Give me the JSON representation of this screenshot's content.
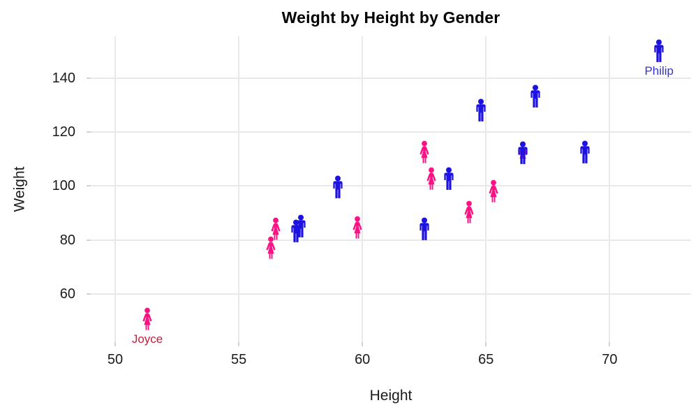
{
  "chart_data": {
    "type": "scatter",
    "title": "Weight by Height by Gender",
    "xlabel": "Height",
    "ylabel": "Weight",
    "x_ticks": [
      50,
      55,
      60,
      65,
      70
    ],
    "y_ticks": [
      60,
      80,
      100,
      120,
      140
    ],
    "xlim": [
      48.1,
      73.4
    ],
    "ylim": [
      44.5,
      155.5
    ],
    "grid": true,
    "legend_position": "none",
    "marker_style": "person-pictogram",
    "colors": {
      "gridline": "#e9e9e9",
      "tick_mark": "#d2d2d2",
      "axis_text": "#1a1a1a",
      "male": "#1d12e0",
      "female": "#fb1383"
    },
    "series": [
      {
        "name": "Female",
        "icon": "female-person",
        "color": "#fb1383",
        "points": [
          [
            51.3,
            50.5
          ],
          [
            56.3,
            77
          ],
          [
            56.5,
            84
          ],
          [
            59.8,
            84.5
          ],
          [
            62.5,
            112.5
          ],
          [
            62.8,
            102.5
          ],
          [
            64.3,
            90
          ],
          [
            65.3,
            98
          ],
          [
            66.5,
            112
          ]
        ]
      },
      {
        "name": "Male",
        "icon": "male-person",
        "color": "#1d12e0",
        "points": [
          [
            57.3,
            83
          ],
          [
            57.5,
            85
          ],
          [
            59,
            99.5
          ],
          [
            62.5,
            84
          ],
          [
            63.5,
            102.5
          ],
          [
            64.8,
            128
          ],
          [
            66.5,
            112
          ],
          [
            67,
            133
          ],
          [
            69,
            112.5
          ],
          [
            72,
            150
          ]
        ]
      }
    ],
    "annotations": [
      {
        "text": "Philip",
        "x": 72,
        "y": 150,
        "color": "#3535cd"
      },
      {
        "text": "Joyce",
        "x": 51.3,
        "y": 50.5,
        "color": "#c0203e"
      }
    ]
  }
}
